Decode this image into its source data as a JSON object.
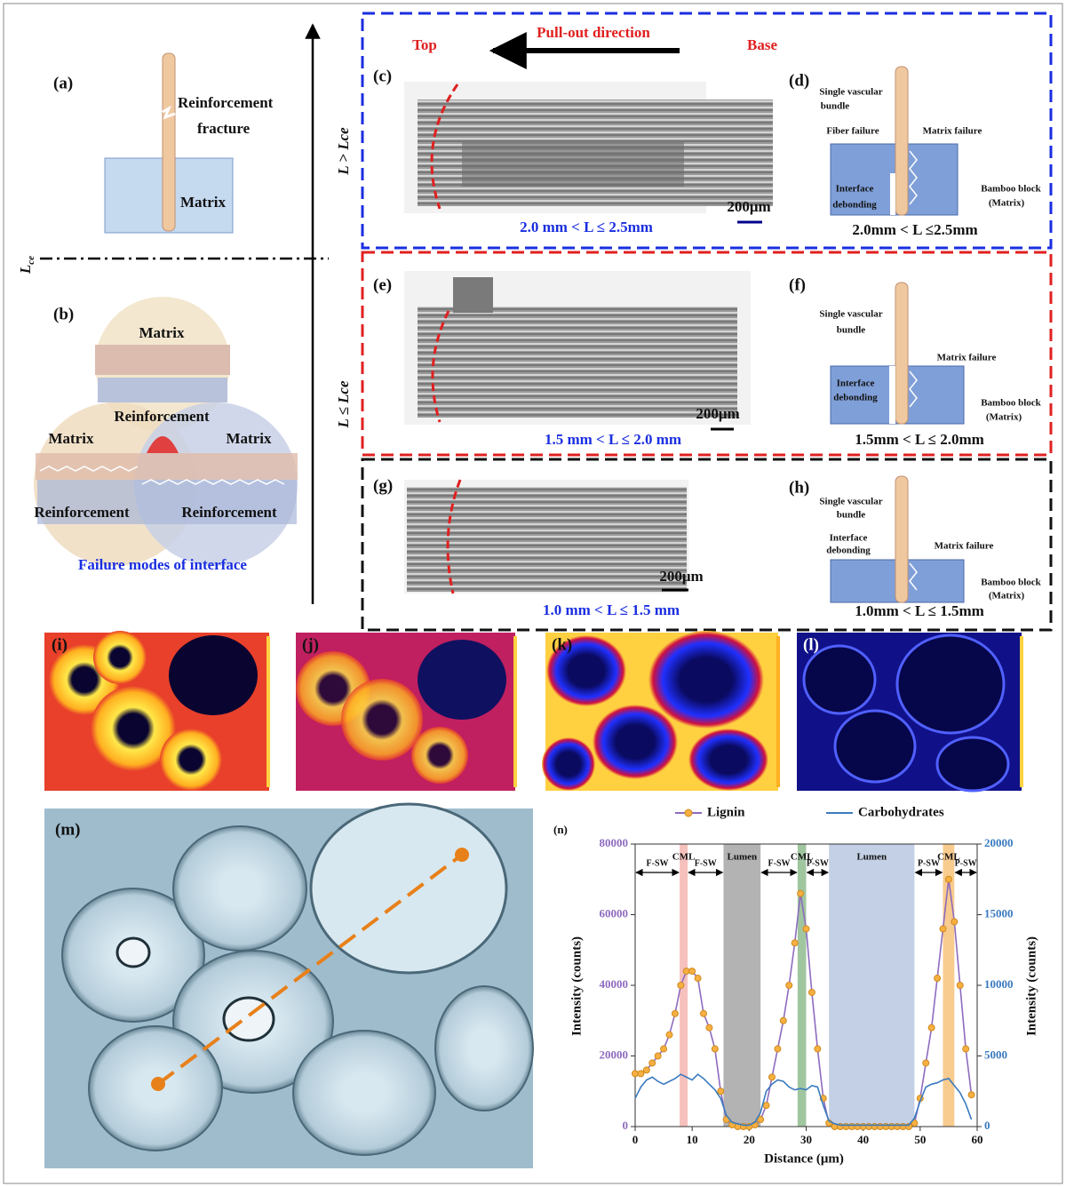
{
  "panel_a": {
    "label": "(a)",
    "fracture_line1": "Reinforcement",
    "fracture_line2": "fracture",
    "matrix": "Matrix"
  },
  "critical_length": {
    "symbol": "L",
    "subscript": "ce"
  },
  "panel_b": {
    "label": "(b)",
    "top": "Matrix",
    "center": "Reinforcement",
    "left": "Matrix",
    "right": "Matrix",
    "bottom_left": "Reinforcement",
    "bottom_right": "Reinforcement",
    "caption": "Failure modes of interface"
  },
  "vertical_axis": {
    "upper": "L > Lce",
    "lower": "L ≤ Lce"
  },
  "pullout": {
    "top": "Top",
    "direction": "Pull-out direction",
    "base": "Base"
  },
  "panel_c": {
    "label": "(c)",
    "scale": "200μm",
    "range": "2.0 mm < L ≤ 2.5mm"
  },
  "panel_d": {
    "label": "(d)",
    "bundle_line1": "Single vascular",
    "bundle_line2": "bundle",
    "fiber_failure": "Fiber failure",
    "matrix_failure": "Matrix failure",
    "interface_line1": "Interface",
    "interface_line2": "debonding",
    "block": "Bamboo block",
    "block_note": "(Matrix)",
    "range": "2.0mm < L ≤2.5mm"
  },
  "panel_e": {
    "label": "(e)",
    "scale": "200μm",
    "range": "1.5 mm < L ≤ 2.0 mm"
  },
  "panel_f": {
    "label": "(f)",
    "bundle_line1": "Single vascular",
    "bundle_line2": "bundle",
    "matrix_failure": "Matrix failure",
    "interface_line1": "Interface",
    "interface_line2": "debonding",
    "block": "Bamboo block",
    "block_note": "(Matrix)",
    "range": "1.5mm < L ≤ 2.0mm"
  },
  "panel_g": {
    "label": "(g)",
    "scale": "200μm",
    "range": "1.0 mm < L ≤ 1.5 mm"
  },
  "panel_h": {
    "label": "(h)",
    "bundle_line1": "Single vascular",
    "bundle_line2": "bundle",
    "interface_line1": "Interface",
    "interface_line2": "debonding",
    "matrix_failure": "Matrix failure",
    "block": "Bamboo block",
    "block_note": "(Matrix)",
    "range": "1.0mm < L ≤ 1.5mm"
  },
  "panel_i": {
    "label": "(i)"
  },
  "panel_j": {
    "label": "(j)"
  },
  "panel_k": {
    "label": "(k)"
  },
  "panel_l": {
    "label": "(l)"
  },
  "panel_m": {
    "label": "(m)"
  },
  "chart_data": {
    "type": "line",
    "label": "(n)",
    "x_label": "Distance (μm)",
    "y_label": "Intensity (counts)",
    "y2_label": "Intensity (counts)",
    "x": [
      0,
      1,
      2,
      3,
      4,
      5,
      6,
      7,
      8,
      9,
      10,
      11,
      12,
      13,
      14,
      15,
      16,
      17,
      18,
      19,
      20,
      21,
      22,
      23,
      24,
      25,
      26,
      27,
      28,
      29,
      30,
      31,
      32,
      33,
      34,
      35,
      36,
      37,
      38,
      39,
      40,
      41,
      42,
      43,
      44,
      45,
      46,
      47,
      48,
      49,
      50,
      51,
      52,
      53,
      54,
      55,
      56,
      57,
      58,
      59
    ],
    "xlim": [
      0,
      60
    ],
    "xticks": [
      0,
      10,
      20,
      30,
      40,
      50,
      60
    ],
    "ylim": [
      0,
      80000
    ],
    "yticks": [
      0,
      20000,
      40000,
      60000,
      80000
    ],
    "y2lim": [
      0,
      20000
    ],
    "y2ticks": [
      0,
      5000,
      10000,
      15000,
      20000
    ],
    "series": [
      {
        "name": "Lignin",
        "color": "#8e6bbf",
        "marker_color": "#f5b041",
        "values": [
          15000,
          15000,
          16000,
          18000,
          20000,
          22000,
          26000,
          32000,
          40000,
          44000,
          44000,
          42000,
          32000,
          28000,
          22000,
          10000,
          2000,
          500,
          0,
          0,
          0,
          500,
          2000,
          6000,
          14000,
          22000,
          30000,
          40000,
          52000,
          66000,
          56000,
          38000,
          22000,
          8000,
          1000,
          0,
          0,
          0,
          0,
          0,
          0,
          0,
          0,
          0,
          0,
          0,
          0,
          0,
          0,
          1000,
          8000,
          18000,
          28000,
          42000,
          56000,
          70000,
          58000,
          40000,
          22000,
          9000
        ]
      },
      {
        "name": "Carbohydrates",
        "color": "#3b7bbf",
        "axis": "y2",
        "values": [
          2000,
          2800,
          3300,
          3500,
          3200,
          3000,
          3200,
          3400,
          3700,
          3500,
          3300,
          3700,
          3400,
          3000,
          2600,
          2000,
          800,
          300,
          200,
          100,
          100,
          300,
          1000,
          2500,
          3000,
          3300,
          3200,
          2800,
          2600,
          2700,
          2600,
          2900,
          2800,
          1500,
          400,
          200,
          100,
          100,
          100,
          100,
          100,
          100,
          100,
          100,
          100,
          100,
          100,
          100,
          100,
          600,
          1800,
          2800,
          3000,
          3100,
          3300,
          3400,
          2900,
          2400,
          1600,
          500
        ]
      }
    ],
    "regions": [
      {
        "label": "CML",
        "x": [
          7.8,
          9.2
        ],
        "color": "#f4b6b0"
      },
      {
        "label": "Lumen",
        "x": [
          15.5,
          22
        ],
        "color": "#a6a6a6"
      },
      {
        "label": "CML",
        "x": [
          28.5,
          30
        ],
        "color": "#8fbc8f"
      },
      {
        "label": "Lumen",
        "x": [
          34,
          49
        ],
        "color": "#b8c8e0"
      },
      {
        "label": "CML",
        "x": [
          54,
          56
        ],
        "color": "#f7c27a"
      }
    ],
    "segments": [
      {
        "label": "F-SW",
        "x": [
          0,
          7.8
        ]
      },
      {
        "label": "F-SW",
        "x": [
          9.2,
          15.5
        ]
      },
      {
        "label": "F-SW",
        "x": [
          22,
          28.5
        ]
      },
      {
        "label": "P-SW",
        "x": [
          30,
          34
        ]
      },
      {
        "label": "P-SW",
        "x": [
          49,
          54
        ]
      },
      {
        "label": "P-SW",
        "x": [
          56,
          60
        ]
      }
    ]
  }
}
